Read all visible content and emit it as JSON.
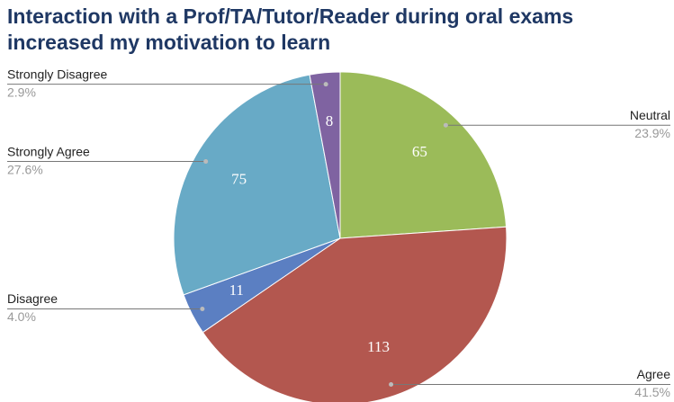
{
  "chart_data": {
    "type": "pie",
    "title": "Interaction with a Prof/TA/Tutor/Reader during oral exams increased my motivation to learn",
    "categories": [
      "Neutral",
      "Agree",
      "Disagree",
      "Strongly Agree",
      "Strongly Disagree"
    ],
    "values": [
      65,
      113,
      11,
      75,
      8
    ],
    "percent_labels": [
      "23.9%",
      "41.5%",
      "4.0%",
      "27.6%",
      "2.9%"
    ],
    "colors": [
      "#9bbb59",
      "#b3574f",
      "#5b7fc2",
      "#68aac6",
      "#7f63a1"
    ]
  }
}
